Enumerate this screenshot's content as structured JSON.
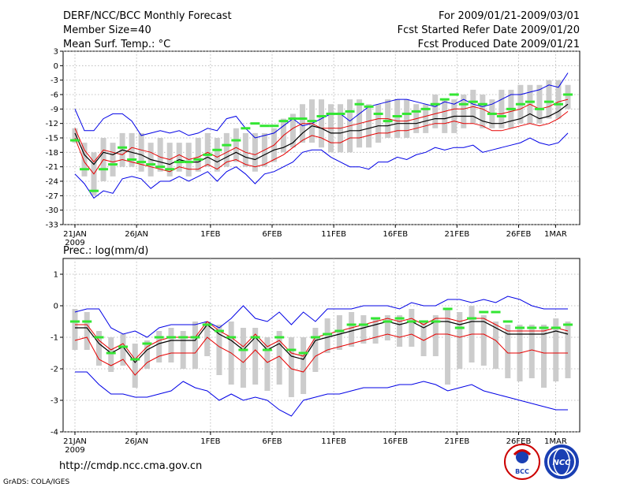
{
  "header": {
    "title": "DERF/NCC/BCC Monthly Forecast",
    "member_size": "Member Size=40",
    "variable": "Mean Surf. Temp.: °C",
    "period": "For 2009/01/21-2009/03/01",
    "start_date": "Fcst Started Refer Date 2009/01/20",
    "produced_date": "Fcst Produced Date 2009/01/21"
  },
  "footer": {
    "url": "http://cmdp.ncc.cma.gov.cn",
    "credit": "GrADS: COLA/IGES",
    "logo_bcc": "BCC",
    "logo_ncc": "NCC"
  },
  "colors": {
    "envelope": "#0000e6",
    "spread": "#e60000",
    "mean": "#000000",
    "bar": "#cccccc",
    "marker": "#33e633"
  },
  "chart_data": [
    {
      "type": "line",
      "title": "",
      "ylabel": "Mean Surf. Temp.: °C",
      "ylim": [
        -33,
        3
      ],
      "yticks": [
        3,
        0,
        -3,
        -6,
        -9,
        -12,
        -15,
        -18,
        -21,
        -24,
        -27,
        -30,
        -33
      ],
      "xlim": [
        0,
        40
      ],
      "x_ticks": [
        {
          "pos": 0,
          "label": "21JAN",
          "sublabel": "2009"
        },
        {
          "pos": 5,
          "label": "26JAN"
        },
        {
          "pos": 11,
          "label": "1FEB"
        },
        {
          "pos": 16,
          "label": "6FEB"
        },
        {
          "pos": 21,
          "label": "11FEB"
        },
        {
          "pos": 26,
          "label": "16FEB"
        },
        {
          "pos": 31,
          "label": "21FEB"
        },
        {
          "pos": 36,
          "label": "26FEB"
        },
        {
          "pos": 39,
          "label": "1MAR"
        }
      ],
      "series": [
        {
          "name": "max",
          "values": [
            -9,
            -13.5,
            -13.5,
            -11,
            -10,
            -10,
            -11.5,
            -14.5,
            -14,
            -13.5,
            -14,
            -13.5,
            -14.5,
            -14,
            -13,
            -13.5,
            -11,
            -10.5,
            -13,
            -15,
            -14.5,
            -14,
            -12.5,
            -11,
            -12.5,
            -12,
            -11,
            -10,
            -10,
            -11.5,
            -10,
            -8.5,
            -8,
            -7.5,
            -7,
            -7,
            -7.5,
            -8,
            -8.5,
            -7.5,
            -8,
            -7,
            -8,
            -8.5,
            -8,
            -7,
            -6,
            -6,
            -5.5,
            -5,
            -4,
            -4.5,
            -1.5
          ]
        },
        {
          "name": "p75",
          "values": [
            -13,
            -17.5,
            -20,
            -17.5,
            -18,
            -18.5,
            -17,
            -17.5,
            -18,
            -19,
            -19.5,
            -18.5,
            -19.5,
            -19,
            -18,
            -19,
            -18,
            -17,
            -18,
            -18.5,
            -17.5,
            -16.5,
            -14.5,
            -13,
            -12,
            -12,
            -13,
            -13,
            -13,
            -12.5,
            -12,
            -11.5,
            -11,
            -11,
            -11.5,
            -11.5,
            -11,
            -10.5,
            -10,
            -9.5,
            -9,
            -9,
            -8.5,
            -9,
            -10,
            -10,
            -9.5,
            -9,
            -8,
            -9,
            -8.5,
            -7.5,
            -7
          ]
        },
        {
          "name": "mean",
          "values": [
            -14,
            -18.5,
            -20.5,
            -18,
            -18.5,
            -17.5,
            -18,
            -18.5,
            -19.5,
            -20,
            -20.5,
            -19.5,
            -20,
            -20,
            -19,
            -20,
            -19,
            -18,
            -19,
            -19.5,
            -18.5,
            -17.5,
            -17,
            -16,
            -14,
            -12.5,
            -13,
            -14,
            -14,
            -13.5,
            -13.5,
            -13,
            -12.5,
            -12.5,
            -12,
            -12,
            -12,
            -11.5,
            -11,
            -11,
            -10.5,
            -10.5,
            -10.5,
            -11.5,
            -12,
            -12,
            -11.5,
            -11,
            -10,
            -11,
            -10.5,
            -9.5,
            -8
          ]
        },
        {
          "name": "p25",
          "values": [
            -15,
            -20,
            -22.5,
            -19.5,
            -20,
            -19.5,
            -20,
            -20.5,
            -21,
            -21.5,
            -22,
            -21,
            -21.5,
            -21.5,
            -20.5,
            -21.5,
            -20,
            -19.5,
            -20.5,
            -21,
            -20.5,
            -19.5,
            -18.5,
            -17,
            -15.5,
            -14.5,
            -15,
            -16,
            -16,
            -15,
            -15,
            -14.5,
            -14,
            -14,
            -13.5,
            -13.5,
            -13,
            -12.5,
            -12,
            -12,
            -11.5,
            -12,
            -12,
            -12.5,
            -13.5,
            -13.5,
            -13,
            -12.5,
            -12,
            -12.5,
            -12,
            -11,
            -9.5
          ]
        },
        {
          "name": "min",
          "values": [
            -22.5,
            -24.5,
            -27.5,
            -26,
            -26.5,
            -23.5,
            -23,
            -23.5,
            -25.5,
            -24,
            -24,
            -23,
            -24,
            -23,
            -22,
            -24,
            -22,
            -21,
            -22.5,
            -24.5,
            -22.5,
            -22,
            -21,
            -20,
            -18,
            -17.5,
            -17.5,
            -19,
            -20,
            -21,
            -21,
            -21.5,
            -20,
            -20,
            -19,
            -19.5,
            -18.5,
            -18,
            -17,
            -17.5,
            -17,
            -17,
            -16.5,
            -18,
            -17.5,
            -17,
            -16.5,
            -16,
            -15,
            -16,
            -16.5,
            -16,
            -14
          ]
        },
        {
          "name": "bars_top",
          "values": [
            -13,
            -16,
            -18,
            -15,
            -16,
            -14,
            -14,
            -14,
            -16,
            -15,
            -16,
            -16,
            -16,
            -15,
            -14,
            -15,
            -14,
            -13,
            -14,
            -14,
            -14,
            -13,
            -11,
            -10,
            -8,
            -7,
            -7,
            -8,
            -8,
            -7,
            -7,
            -8,
            -8,
            -7,
            -7,
            -7,
            -8,
            -8,
            -6,
            -7,
            -7,
            -6,
            -5,
            -6,
            -7,
            -5,
            -5,
            -4,
            -4,
            -4,
            -3,
            -3,
            -4
          ]
        },
        {
          "name": "bars_bottom",
          "values": [
            -16,
            -23,
            -27,
            -24,
            -23,
            -21,
            -21,
            -22,
            -23,
            -22,
            -23,
            -22,
            -23,
            -22,
            -21,
            -22,
            -21,
            -20,
            -21,
            -22,
            -21,
            -20,
            -18,
            -17,
            -16,
            -16,
            -17,
            -18,
            -18,
            -18,
            -17,
            -17,
            -16,
            -15,
            -15,
            -15,
            -14,
            -14,
            -13,
            -14,
            -14,
            -13,
            -12,
            -13,
            -13,
            -13,
            -13,
            -12,
            -12,
            -12,
            -11,
            -11,
            -9
          ]
        },
        {
          "name": "markers",
          "values": [
            -15.5,
            -21.5,
            -26,
            -21.5,
            -20.5,
            -17,
            -19.5,
            -20,
            -20.5,
            -21,
            -21.5,
            -20,
            -20,
            -19.5,
            -18.5,
            -17.5,
            -16.5,
            -15.5,
            -13,
            -12,
            -12.5,
            -12.5,
            -11.5,
            -11,
            -11,
            -11.5,
            -10.5,
            -10,
            -10,
            -9.5,
            -8,
            -8.5,
            -10,
            -11.5,
            -10.5,
            -10,
            -9.5,
            -9,
            -8,
            -7,
            -6,
            -8,
            -7.5,
            -8,
            -10,
            -10.5,
            -9,
            -8,
            -7.5,
            -9,
            -7.5,
            -8,
            -6
          ]
        }
      ]
    },
    {
      "type": "line",
      "title": "",
      "ylabel": "Prec.: log(mm/d)",
      "ylim": [
        -4,
        1.5
      ],
      "yticks": [
        1,
        0,
        -1,
        -2,
        -3,
        -4
      ],
      "xlim": [
        0,
        40
      ],
      "x_ticks": [
        {
          "pos": 0,
          "label": "21JAN",
          "sublabel": "2009"
        },
        {
          "pos": 5,
          "label": "26JAN"
        },
        {
          "pos": 11,
          "label": "1FEB"
        },
        {
          "pos": 16,
          "label": "6FEB"
        },
        {
          "pos": 21,
          "label": "11FEB"
        },
        {
          "pos": 26,
          "label": "16FEB"
        },
        {
          "pos": 31,
          "label": "21FEB"
        },
        {
          "pos": 36,
          "label": "26FEB"
        },
        {
          "pos": 39,
          "label": "1MAR"
        }
      ],
      "series": [
        {
          "name": "max",
          "values": [
            -0.2,
            -0.1,
            -0.1,
            -0.7,
            -0.9,
            -0.8,
            -1.0,
            -0.7,
            -0.6,
            -0.6,
            -0.6,
            -0.5,
            -0.7,
            -0.4,
            0.0,
            -0.4,
            -0.5,
            -0.2,
            -0.6,
            -0.2,
            -0.5,
            -0.1,
            -0.1,
            -0.1,
            0.0,
            0.0,
            0.0,
            -0.1,
            0.1,
            0.0,
            0.0,
            0.2,
            0.2,
            0.1,
            0.2,
            0.1,
            0.3,
            0.2,
            0.0,
            -0.1,
            -0.1,
            -0.1
          ]
        },
        {
          "name": "p75",
          "values": [
            -0.6,
            -0.6,
            -1.1,
            -1.4,
            -1.2,
            -1.7,
            -1.3,
            -1.1,
            -1.0,
            -1.0,
            -1.0,
            -0.5,
            -0.8,
            -1.0,
            -1.3,
            -0.9,
            -1.3,
            -1.1,
            -1.5,
            -1.6,
            -1.0,
            -0.9,
            -0.8,
            -0.7,
            -0.6,
            -0.5,
            -0.4,
            -0.5,
            -0.4,
            -0.6,
            -0.4,
            -0.4,
            -0.5,
            -0.4,
            -0.4,
            -0.6,
            -0.8,
            -0.8,
            -0.8,
            -0.8,
            -0.7,
            -0.8
          ]
        },
        {
          "name": "mean",
          "values": [
            -0.7,
            -0.7,
            -1.2,
            -1.5,
            -1.3,
            -1.8,
            -1.4,
            -1.2,
            -1.1,
            -1.1,
            -1.1,
            -0.6,
            -0.9,
            -1.1,
            -1.4,
            -1.0,
            -1.4,
            -1.2,
            -1.6,
            -1.7,
            -1.1,
            -1.0,
            -0.9,
            -0.8,
            -0.7,
            -0.6,
            -0.5,
            -0.6,
            -0.5,
            -0.7,
            -0.5,
            -0.5,
            -0.6,
            -0.5,
            -0.5,
            -0.7,
            -0.9,
            -0.9,
            -0.9,
            -0.9,
            -0.8,
            -0.9
          ]
        },
        {
          "name": "p25",
          "values": [
            -1.1,
            -1.0,
            -1.7,
            -1.9,
            -1.7,
            -2.2,
            -1.8,
            -1.6,
            -1.5,
            -1.5,
            -1.5,
            -1.0,
            -1.3,
            -1.5,
            -1.8,
            -1.4,
            -1.8,
            -1.6,
            -2.0,
            -2.1,
            -1.6,
            -1.4,
            -1.3,
            -1.2,
            -1.1,
            -1.0,
            -0.9,
            -1.0,
            -0.9,
            -1.1,
            -0.9,
            -0.9,
            -1.0,
            -0.9,
            -0.9,
            -1.1,
            -1.5,
            -1.5,
            -1.4,
            -1.5,
            -1.5,
            -1.5
          ]
        },
        {
          "name": "min",
          "values": [
            -2.1,
            -2.1,
            -2.5,
            -2.8,
            -2.8,
            -2.9,
            -2.9,
            -2.8,
            -2.7,
            -2.4,
            -2.6,
            -2.7,
            -3.0,
            -2.8,
            -3.0,
            -2.9,
            -3.0,
            -3.3,
            -3.5,
            -3.0,
            -2.9,
            -2.8,
            -2.8,
            -2.7,
            -2.6,
            -2.6,
            -2.6,
            -2.5,
            -2.5,
            -2.4,
            -2.5,
            -2.7,
            -2.6,
            -2.5,
            -2.7,
            -2.8,
            -2.9,
            -3.0,
            -3.1,
            -3.2,
            -3.3,
            -3.3
          ]
        },
        {
          "name": "bars_top",
          "values": [
            -0.1,
            -0.2,
            -0.8,
            -1.0,
            -0.9,
            -1.2,
            -1.1,
            -0.8,
            -0.7,
            -0.8,
            -0.5,
            -0.5,
            -0.6,
            -0.5,
            -0.7,
            -0.7,
            -1.0,
            -0.8,
            -1.0,
            -1.0,
            -0.7,
            -0.4,
            -0.3,
            -0.2,
            -0.3,
            -0.4,
            -0.3,
            -0.3,
            -0.1,
            -0.5,
            -0.3,
            -0.1,
            -0.2,
            0.0,
            -0.3,
            -0.5,
            -0.6,
            -0.6,
            -0.6,
            -0.6,
            -0.4,
            -0.5
          ]
        },
        {
          "name": "bars_bottom",
          "values": [
            -1.4,
            -1.4,
            -1.9,
            -2.1,
            -1.9,
            -2.6,
            -2.0,
            -1.8,
            -1.8,
            -2.0,
            -2.0,
            -1.6,
            -2.2,
            -2.5,
            -2.6,
            -2.5,
            -2.7,
            -2.5,
            -2.9,
            -2.8,
            -2.1,
            -1.5,
            -1.4,
            -1.3,
            -1.2,
            -1.2,
            -1.1,
            -1.3,
            -1.3,
            -1.6,
            -1.6,
            -2.5,
            -2.0,
            -1.8,
            -1.9,
            -2.0,
            -2.3,
            -2.4,
            -2.3,
            -2.6,
            -2.4,
            -2.3
          ]
        },
        {
          "name": "markers",
          "values": [
            -0.5,
            -0.5,
            -1.0,
            -1.5,
            -1.3,
            -1.7,
            -1.2,
            -1.0,
            -1.0,
            -1.0,
            -1.0,
            -0.6,
            -0.8,
            -1.0,
            -1.4,
            -1.0,
            -1.4,
            -1.0,
            -1.4,
            -1.5,
            -1.0,
            -0.9,
            -0.8,
            -0.6,
            -0.6,
            -0.4,
            -0.5,
            -0.4,
            -0.5,
            -0.5,
            -0.5,
            -0.1,
            -0.7,
            -0.4,
            -0.2,
            -0.2,
            -0.5,
            -0.7,
            -0.7,
            -0.7,
            -0.7,
            -0.6
          ]
        }
      ]
    }
  ]
}
